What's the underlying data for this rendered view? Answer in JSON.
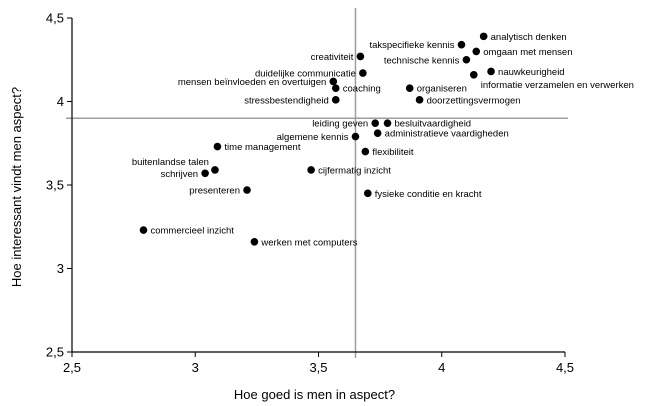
{
  "chart_data": {
    "type": "scatter",
    "xlabel": "Hoe goed is men in aspect?",
    "ylabel": "Hoe interessant vindt men aspect?",
    "xlim": [
      2.5,
      4.5
    ],
    "ylim": [
      2.5,
      4.5
    ],
    "xticks": [
      "2,5",
      "3",
      "3,5",
      "4",
      "4,5"
    ],
    "yticks": [
      "2,5",
      "3",
      "3,5",
      "4",
      "4,5"
    ],
    "xtick_values": [
      2.5,
      3,
      3.5,
      4,
      4.5
    ],
    "ytick_values": [
      2.5,
      3,
      3.5,
      4,
      4.5
    ],
    "grid": false,
    "reference_lines": {
      "x": 3.65,
      "y": 3.9
    },
    "points": [
      {
        "label": "analytisch denken",
        "x": 4.17,
        "y": 4.39,
        "anchor": "right"
      },
      {
        "label": "takspecifieke kennis",
        "x": 4.08,
        "y": 4.34,
        "anchor": "left"
      },
      {
        "label": "omgaan met mensen",
        "x": 4.14,
        "y": 4.3,
        "anchor": "right"
      },
      {
        "label": "creativiteit",
        "x": 3.67,
        "y": 4.27,
        "anchor": "left"
      },
      {
        "label": "technische kennis",
        "x": 4.1,
        "y": 4.25,
        "anchor": "left"
      },
      {
        "label": "nauwkeurigheid",
        "x": 4.2,
        "y": 4.18,
        "anchor": "right"
      },
      {
        "label": "duidelijke communicatie",
        "x": 3.68,
        "y": 4.17,
        "anchor": "left"
      },
      {
        "label": "informatie verzamelen en verwerken",
        "x": 4.13,
        "y": 4.16,
        "anchor": "right-below"
      },
      {
        "label": "mensen beïnvloeden en overtuigen",
        "x": 3.56,
        "y": 4.12,
        "anchor": "left"
      },
      {
        "label": "coaching",
        "x": 3.57,
        "y": 4.08,
        "anchor": "right"
      },
      {
        "label": "organiseren",
        "x": 3.87,
        "y": 4.08,
        "anchor": "right"
      },
      {
        "label": "stressbestendigheid",
        "x": 3.57,
        "y": 4.01,
        "anchor": "left"
      },
      {
        "label": "doorzettingsvermogen",
        "x": 3.91,
        "y": 4.01,
        "anchor": "right"
      },
      {
        "label": "leiding geven",
        "x": 3.73,
        "y": 3.87,
        "anchor": "left"
      },
      {
        "label": "besluitvaardigheid",
        "x": 3.78,
        "y": 3.87,
        "anchor": "right"
      },
      {
        "label": "algemene kennis",
        "x": 3.65,
        "y": 3.79,
        "anchor": "left"
      },
      {
        "label": "administratieve vaardigheden",
        "x": 3.74,
        "y": 3.81,
        "anchor": "right"
      },
      {
        "label": "time management",
        "x": 3.09,
        "y": 3.73,
        "anchor": "right"
      },
      {
        "label": "flexibiliteit",
        "x": 3.69,
        "y": 3.7,
        "anchor": "right"
      },
      {
        "label": "buitenlandse talen",
        "x": 3.08,
        "y": 3.59,
        "anchor": "left-above"
      },
      {
        "label": "schrijven",
        "x": 3.04,
        "y": 3.57,
        "anchor": "left"
      },
      {
        "label": "cijfermatig inzicht",
        "x": 3.47,
        "y": 3.59,
        "anchor": "right"
      },
      {
        "label": "presenteren",
        "x": 3.21,
        "y": 3.47,
        "anchor": "left"
      },
      {
        "label": "fysieke conditie en kracht",
        "x": 3.7,
        "y": 3.45,
        "anchor": "right"
      },
      {
        "label": "commercieel inzicht",
        "x": 2.79,
        "y": 3.23,
        "anchor": "right"
      },
      {
        "label": "werken met computers",
        "x": 3.24,
        "y": 3.16,
        "anchor": "right"
      }
    ]
  }
}
